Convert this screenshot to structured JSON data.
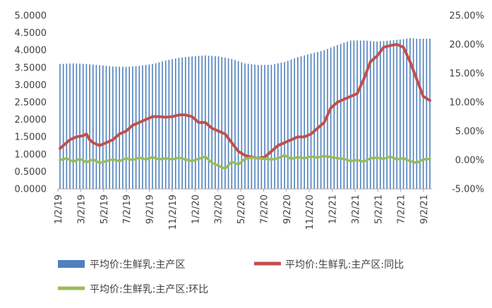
{
  "chart_data": {
    "type": "bar+line",
    "title": "",
    "x_ticks": [
      "1/2/19",
      "3/2/19",
      "5/2/19",
      "7/2/19",
      "9/2/19",
      "11/2/19",
      "1/2/20",
      "3/2/20",
      "5/2/20",
      "7/2/20",
      "9/2/20",
      "11/2/20",
      "1/2/21",
      "3/2/21",
      "5/2/21",
      "7/2/21",
      "9/2/21"
    ],
    "y_left": {
      "min": 0,
      "max": 5,
      "ticks": [
        "0.0000",
        "0.5000",
        "1.0000",
        "1.5000",
        "2.0000",
        "2.5000",
        "3.0000",
        "3.5000",
        "4.0000",
        "4.5000",
        "5.0000"
      ]
    },
    "y_right": {
      "min": -5,
      "max": 25,
      "ticks": [
        "-5.00%",
        "0.00%",
        "5.00%",
        "10.00%",
        "15.00%",
        "20.00%",
        "25.00%"
      ]
    },
    "series": [
      {
        "name": "平均价:生鲜乳:主产区",
        "type": "bar",
        "axis": "left",
        "color": "#4f81bd",
        "points": [
          [
            0,
            3.6
          ],
          [
            4,
            3.62
          ],
          [
            8,
            3.6
          ],
          [
            12,
            3.57
          ],
          [
            16,
            3.53
          ],
          [
            20,
            3.52
          ],
          [
            24,
            3.55
          ],
          [
            28,
            3.6
          ],
          [
            32,
            3.7
          ],
          [
            36,
            3.78
          ],
          [
            40,
            3.82
          ],
          [
            44,
            3.85
          ],
          [
            48,
            3.82
          ],
          [
            52,
            3.75
          ],
          [
            56,
            3.62
          ],
          [
            60,
            3.57
          ],
          [
            64,
            3.58
          ],
          [
            68,
            3.66
          ],
          [
            72,
            3.8
          ],
          [
            76,
            3.9
          ],
          [
            80,
            4.0
          ],
          [
            84,
            4.15
          ],
          [
            88,
            4.28
          ],
          [
            92,
            4.28
          ],
          [
            96,
            4.25
          ],
          [
            100,
            4.28
          ],
          [
            104,
            4.32
          ],
          [
            106,
            4.35
          ],
          [
            108,
            4.33
          ],
          [
            110,
            4.33
          ]
        ]
      },
      {
        "name": "平均价:生鲜乳:主产区:同比",
        "type": "line",
        "axis": "right",
        "color": "#c0504d",
        "points": [
          [
            0,
            2.0
          ],
          [
            3,
            3.5
          ],
          [
            5,
            4.0
          ],
          [
            7,
            4.2
          ],
          [
            8,
            4.5
          ],
          [
            9,
            3.5
          ],
          [
            10,
            3.0
          ],
          [
            12,
            2.5
          ],
          [
            14,
            3.0
          ],
          [
            16,
            3.5
          ],
          [
            18,
            4.5
          ],
          [
            20,
            5.0
          ],
          [
            22,
            6.0
          ],
          [
            24,
            6.5
          ],
          [
            26,
            7.0
          ],
          [
            28,
            7.5
          ],
          [
            30,
            7.5
          ],
          [
            32,
            7.4
          ],
          [
            34,
            7.5
          ],
          [
            36,
            7.8
          ],
          [
            38,
            7.8
          ],
          [
            40,
            7.5
          ],
          [
            42,
            6.5
          ],
          [
            44,
            6.5
          ],
          [
            46,
            5.5
          ],
          [
            48,
            5.0
          ],
          [
            50,
            4.5
          ],
          [
            52,
            3.0
          ],
          [
            54,
            1.5
          ],
          [
            56,
            0.8
          ],
          [
            58,
            0.5
          ],
          [
            60,
            0.3
          ],
          [
            62,
            0.5
          ],
          [
            64,
            1.5
          ],
          [
            66,
            2.5
          ],
          [
            68,
            3.0
          ],
          [
            70,
            3.5
          ],
          [
            72,
            4.0
          ],
          [
            74,
            4.0
          ],
          [
            76,
            4.5
          ],
          [
            78,
            5.5
          ],
          [
            80,
            6.5
          ],
          [
            82,
            9.0
          ],
          [
            84,
            10.0
          ],
          [
            86,
            10.5
          ],
          [
            88,
            11.0
          ],
          [
            90,
            11.5
          ],
          [
            92,
            14.0
          ],
          [
            94,
            17.0
          ],
          [
            96,
            18.0
          ],
          [
            98,
            19.5
          ],
          [
            100,
            19.8
          ],
          [
            102,
            20.0
          ],
          [
            104,
            19.5
          ],
          [
            106,
            17.0
          ],
          [
            108,
            14.0
          ],
          [
            110,
            11.0
          ],
          [
            112,
            10.3
          ]
        ]
      },
      {
        "name": "平均价:生鲜乳:主产区:环比",
        "type": "line",
        "axis": "right",
        "color": "#9bbb59",
        "points": [
          [
            0,
            0.0
          ],
          [
            2,
            0.3
          ],
          [
            4,
            -0.3
          ],
          [
            6,
            0.2
          ],
          [
            8,
            -0.4
          ],
          [
            10,
            0.1
          ],
          [
            12,
            -0.5
          ],
          [
            14,
            -0.2
          ],
          [
            16,
            0.1
          ],
          [
            18,
            -0.2
          ],
          [
            20,
            0.3
          ],
          [
            22,
            0.0
          ],
          [
            24,
            0.4
          ],
          [
            26,
            0.1
          ],
          [
            28,
            0.5
          ],
          [
            30,
            0.1
          ],
          [
            32,
            0.3
          ],
          [
            34,
            0.1
          ],
          [
            36,
            0.4
          ],
          [
            38,
            0.1
          ],
          [
            40,
            -0.2
          ],
          [
            42,
            0.2
          ],
          [
            44,
            0.6
          ],
          [
            46,
            -0.5
          ],
          [
            48,
            -1.0
          ],
          [
            50,
            -1.5
          ],
          [
            52,
            -0.3
          ],
          [
            54,
            -0.8
          ],
          [
            56,
            0.2
          ],
          [
            58,
            0.4
          ],
          [
            60,
            0.3
          ],
          [
            62,
            0.2
          ],
          [
            64,
            0.1
          ],
          [
            66,
            0.3
          ],
          [
            68,
            0.8
          ],
          [
            70,
            0.2
          ],
          [
            72,
            0.5
          ],
          [
            74,
            0.3
          ],
          [
            76,
            0.6
          ],
          [
            78,
            0.4
          ],
          [
            80,
            0.7
          ],
          [
            82,
            0.5
          ],
          [
            84,
            0.3
          ],
          [
            86,
            0.2
          ],
          [
            88,
            -0.2
          ],
          [
            90,
            0.0
          ],
          [
            92,
            -0.3
          ],
          [
            94,
            0.3
          ],
          [
            96,
            0.4
          ],
          [
            98,
            0.2
          ],
          [
            100,
            0.6
          ],
          [
            102,
            0.1
          ],
          [
            104,
            0.3
          ],
          [
            106,
            -0.2
          ],
          [
            108,
            -0.5
          ],
          [
            110,
            0.1
          ],
          [
            112,
            0.2
          ]
        ]
      }
    ],
    "legend": {
      "position": "bottom",
      "entries": [
        "平均价:生鲜乳:主产区",
        "平均价:生鲜乳:主产区:同比",
        "平均价:生鲜乳:主产区:环比"
      ]
    },
    "grid": false
  }
}
